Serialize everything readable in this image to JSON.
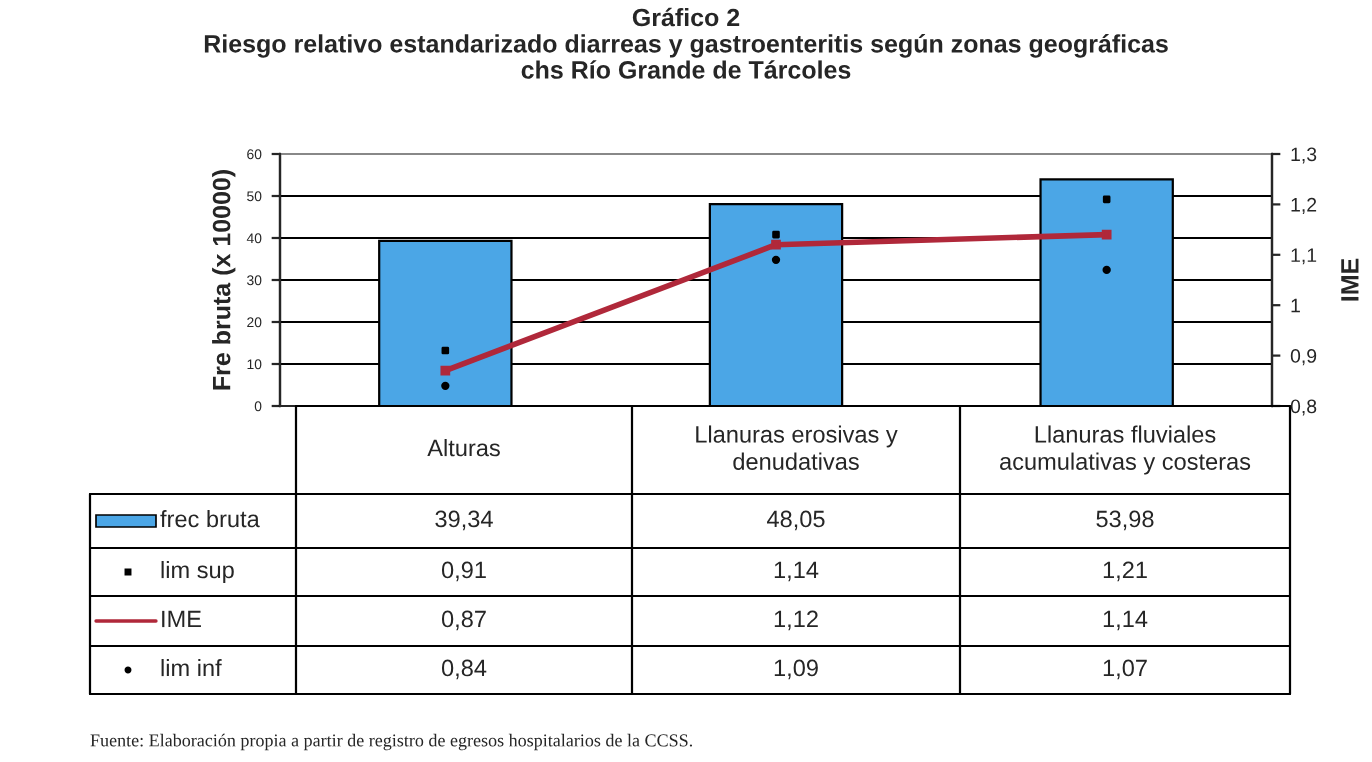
{
  "chart_data": {
    "type": "bar",
    "title": "Gráfico 2\nRiesgo relativo estandarizado diarreas y gastroenteritis según zonas geográficas\nchs Río Grande de Tárcoles",
    "ylabel": "Fre bruta (x 10000)",
    "y2label": "IME",
    "categories": [
      "Alturas",
      "Llanuras erosivas y\ndenudativas",
      "Llanuras fluviales\nacumulativas y costeras"
    ],
    "series": [
      {
        "name": "frec bruta",
        "color": "#4ba6e6",
        "values": [
          39.34,
          48.05,
          53.98
        ],
        "value_labels": [
          "39,34",
          "48,05",
          "53,98"
        ]
      },
      {
        "name": "lim sup",
        "type": "scatter",
        "axis": "y2",
        "marker": "square",
        "color": "#000000",
        "values": [
          0.91,
          1.14,
          1.21
        ],
        "value_labels": [
          "0,91",
          "1,14",
          "1,21"
        ]
      },
      {
        "name": "IME",
        "type": "line",
        "axis": "y2",
        "marker": "square",
        "color": "#b0283a",
        "values": [
          0.87,
          1.12,
          1.14
        ],
        "value_labels": [
          "0,87",
          "1,12",
          "1,14"
        ]
      },
      {
        "name": "lim inf",
        "type": "scatter",
        "axis": "y2",
        "marker": "circle",
        "color": "#000000",
        "values": [
          0.84,
          1.09,
          1.07
        ],
        "value_labels": [
          "0,84",
          "1,09",
          "1,07"
        ]
      }
    ],
    "ylim": [
      0,
      60
    ],
    "yticks": [
      0,
      10,
      20,
      30,
      40,
      50,
      60
    ],
    "y2lim": [
      0.8,
      1.3
    ],
    "y2ticks": [
      {
        "value": 0.8,
        "label": "0,8"
      },
      {
        "value": 0.9,
        "label": "0,9"
      },
      {
        "value": 1.0,
        "label": "1"
      },
      {
        "value": 1.1,
        "label": "1,1"
      },
      {
        "value": 1.2,
        "label": "1,2"
      },
      {
        "value": 1.3,
        "label": "1,3"
      }
    ],
    "grid": "y",
    "legend": "bottom left",
    "data_labels": true,
    "annotations": [
      "Fuente: Elaboración propia a partir de registro de egresos hospitalarios de la CCSS."
    ]
  }
}
